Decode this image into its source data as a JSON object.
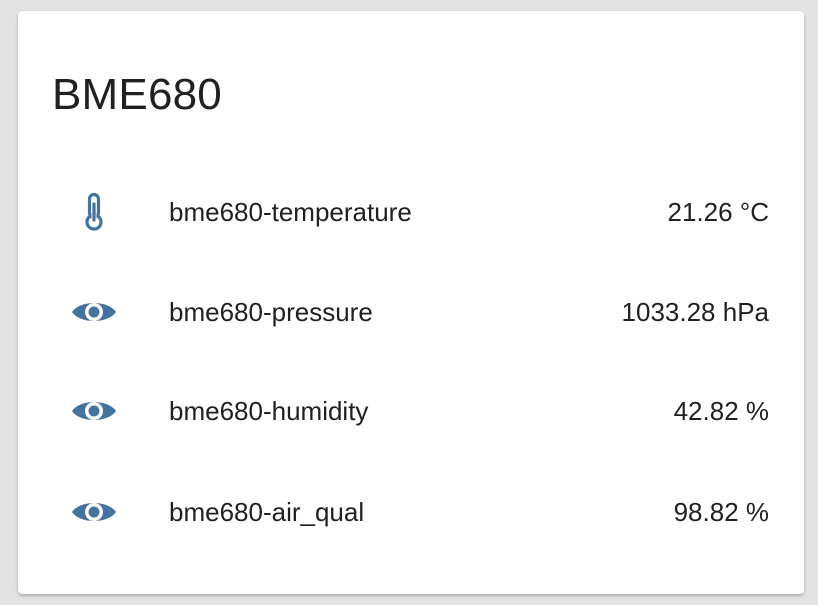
{
  "card": {
    "title": "BME680"
  },
  "colors": {
    "icon": "#44739e",
    "text": "#212121",
    "card_background": "#ffffff",
    "page_background": "#e3e3e3"
  },
  "entities": [
    {
      "icon": "thermometer-icon",
      "name": "bme680-temperature",
      "value": "21.26 °C"
    },
    {
      "icon": "eye-icon",
      "name": "bme680-pressure",
      "value": "1033.28 hPa"
    },
    {
      "icon": "eye-icon",
      "name": "bme680-humidity",
      "value": "42.82 %"
    },
    {
      "icon": "eye-icon",
      "name": "bme680-air_qual",
      "value": "98.82 %"
    }
  ]
}
